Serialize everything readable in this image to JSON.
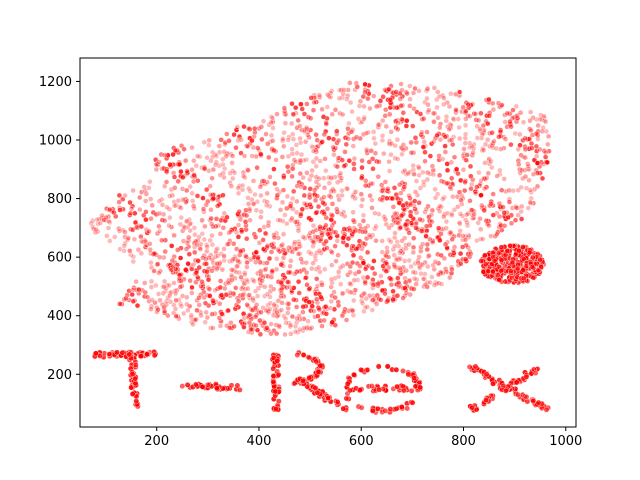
{
  "chart_data": {
    "type": "scatter",
    "title": "",
    "xlabel": "",
    "ylabel": "",
    "xlim": [
      50,
      1020
    ],
    "ylim": [
      20,
      1280
    ],
    "x_ticks": [
      200,
      400,
      600,
      800,
      1000
    ],
    "y_ticks": [
      200,
      400,
      600,
      800,
      1000,
      1200
    ],
    "grid": false,
    "legend": "none",
    "marker_color": "#ff0000",
    "text_mark": {
      "text": "T-Rex",
      "region_x": [
        70,
        970
      ],
      "region_y": [
        70,
        280
      ]
    },
    "series": [
      {
        "kind": "polygon",
        "points": [
          [
            70,
            720
          ],
          [
            105,
            790
          ],
          [
            150,
            850
          ],
          [
            200,
            880
          ],
          [
            190,
            930
          ],
          [
            215,
            990
          ],
          [
            300,
            1000
          ],
          [
            350,
            1040
          ],
          [
            430,
            1100
          ],
          [
            530,
            1170
          ],
          [
            600,
            1210
          ],
          [
            690,
            1200
          ],
          [
            780,
            1170
          ],
          [
            850,
            1140
          ],
          [
            920,
            1110
          ],
          [
            960,
            1080
          ],
          [
            975,
            960
          ],
          [
            955,
            860
          ],
          [
            930,
            740
          ],
          [
            880,
            680
          ],
          [
            820,
            650
          ],
          [
            740,
            690
          ],
          [
            650,
            690
          ],
          [
            580,
            680
          ],
          [
            490,
            640
          ],
          [
            420,
            610
          ],
          [
            350,
            560
          ],
          [
            260,
            530
          ],
          [
            180,
            540
          ],
          [
            120,
            640
          ],
          [
            80,
            680
          ]
        ],
        "count": 1500
      },
      {
        "kind": "polygon",
        "points": [
          [
            125,
            440
          ],
          [
            150,
            510
          ],
          [
            230,
            570
          ],
          [
            330,
            610
          ],
          [
            440,
            650
          ],
          [
            560,
            700
          ],
          [
            700,
            720
          ],
          [
            800,
            690
          ],
          [
            820,
            600
          ],
          [
            760,
            510
          ],
          [
            660,
            440
          ],
          [
            560,
            370
          ],
          [
            460,
            330
          ],
          [
            360,
            340
          ],
          [
            260,
            370
          ],
          [
            170,
            420
          ]
        ],
        "count": 900
      },
      {
        "kind": "ellipse",
        "cx": 895,
        "cy": 575,
        "rx": 62,
        "ry": 65,
        "count": 300
      },
      {
        "kind": "line",
        "from": [
          78,
          265
        ],
        "to": [
          198,
          270
        ],
        "count": 50
      },
      {
        "kind": "line",
        "from": [
          152,
          268
        ],
        "to": [
          158,
          78
        ],
        "count": 45
      },
      {
        "kind": "line",
        "from": [
          255,
          160
        ],
        "to": [
          370,
          155
        ],
        "count": 35
      },
      {
        "kind": "line",
        "from": [
          432,
          270
        ],
        "to": [
          435,
          78
        ],
        "count": 45
      },
      {
        "kind": "arc",
        "cx": 462,
        "cy": 222,
        "rx": 58,
        "ry": 48,
        "a0": 90,
        "a1": -90,
        "count": 50
      },
      {
        "kind": "line",
        "from": [
          478,
          178
        ],
        "to": [
          575,
          78
        ],
        "count": 45
      },
      {
        "kind": "ellipse-ring",
        "cx": 642,
        "cy": 150,
        "rx": 72,
        "ry": 75,
        "a0": 0,
        "a1": 320,
        "count": 65
      },
      {
        "kind": "line",
        "from": [
          572,
          152
        ],
        "to": [
          712,
          152
        ],
        "count": 35
      },
      {
        "kind": "line",
        "from": [
          815,
          225
        ],
        "to": [
          962,
          80
        ],
        "count": 55
      },
      {
        "kind": "line",
        "from": [
          815,
          80
        ],
        "to": [
          955,
          230
        ],
        "count": 55
      }
    ]
  }
}
